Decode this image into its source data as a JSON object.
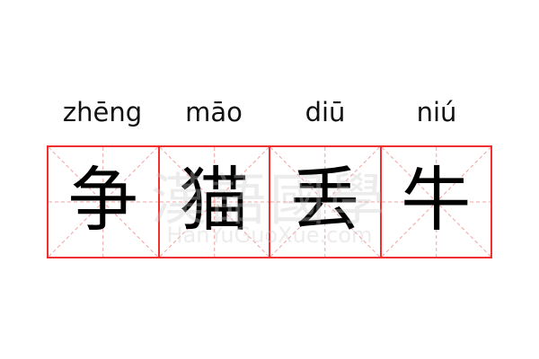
{
  "idiom": {
    "pinyin": [
      "zhēng",
      "māo",
      "diū",
      "niú"
    ],
    "characters": [
      "争",
      "猫",
      "丢",
      "牛"
    ]
  },
  "watermark": {
    "logo_text": "漢語國學",
    "site": "HanYuGuoXue.com"
  },
  "colors": {
    "grid_border": "#f03030",
    "guide_lines": "#f5a0a0",
    "text": "#000000"
  }
}
